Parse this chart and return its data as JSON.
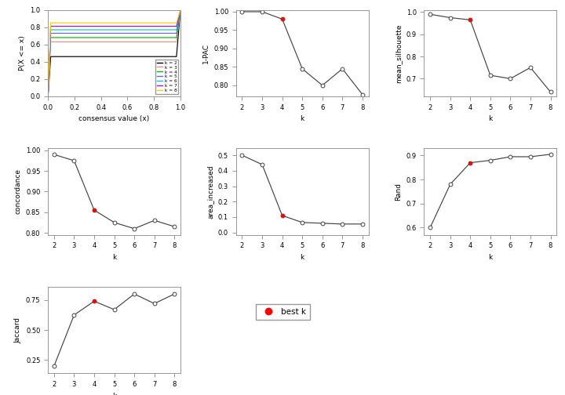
{
  "k_values": [
    2,
    3,
    4,
    5,
    6,
    7,
    8
  ],
  "best_k": 4,
  "one_pac": [
    1.0,
    1.0,
    0.98,
    0.845,
    0.8,
    0.845,
    0.775
  ],
  "mean_silhouette": [
    0.99,
    0.975,
    0.965,
    0.715,
    0.7,
    0.75,
    0.64
  ],
  "concordance": [
    0.99,
    0.975,
    0.855,
    0.825,
    0.81,
    0.83,
    0.815
  ],
  "area_increased": [
    0.5,
    0.44,
    0.11,
    0.065,
    0.06,
    0.055,
    0.055
  ],
  "rand": [
    0.6,
    0.78,
    0.87,
    0.88,
    0.895,
    0.895,
    0.905
  ],
  "jaccard": [
    0.2,
    0.625,
    0.74,
    0.67,
    0.8,
    0.72,
    0.8
  ],
  "cdf_colors": [
    "#000000",
    "#FF8888",
    "#00BB00",
    "#6666FF",
    "#00CCCC",
    "#CC00CC",
    "#FFCC00"
  ],
  "cdf_legend": [
    "k = 2",
    "k = 3",
    "k = 4",
    "k = 5",
    "k = 6",
    "k = 7",
    "k = 8"
  ],
  "open_circle_color": "white",
  "line_color": "#444444",
  "best_k_color": "red",
  "bg_color": "white"
}
